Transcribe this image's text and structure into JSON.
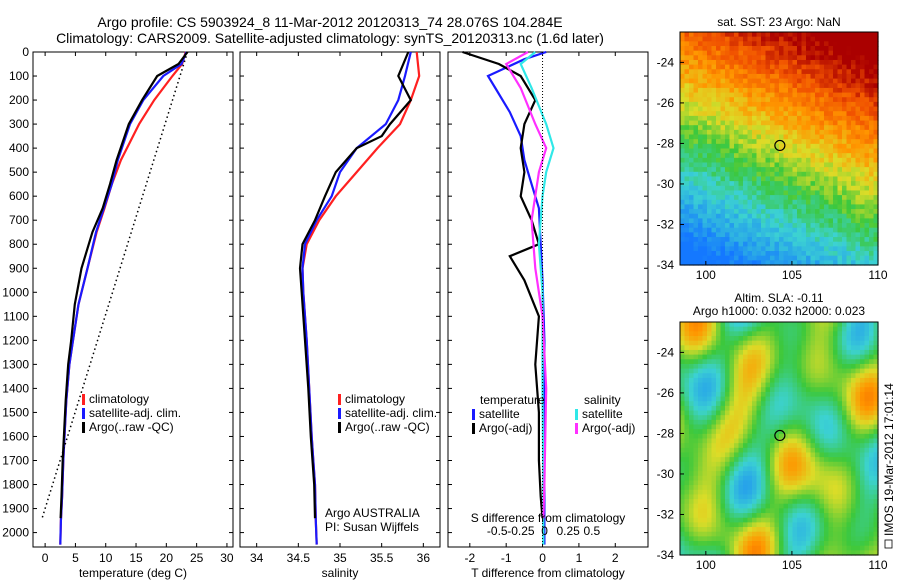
{
  "header": {
    "line1": "Argo profile: CS 5903924_8 11-Mar-2012 20120313_74 28.076S 104.284E",
    "line2": "Climatology: CARS2009. Satellite-adjusted climatology: synTS_20120313.nc (1.6d later)"
  },
  "colors": {
    "climatology": "#ff2020",
    "satellite_adj": "#1a1aff",
    "argo": "#000000",
    "satellite_s": "#30e8e8",
    "argo_s_adj": "#ff30ff"
  },
  "side_text": "IMOS 19-Mar-2012 17:01:14",
  "chart_data": [
    {
      "type": "line",
      "id": "temperature",
      "xlabel": "temperature (deg C)",
      "ylabel": "",
      "xlim": [
        -2,
        31
      ],
      "ylim": [
        2060,
        0
      ],
      "xticks": [
        0,
        5,
        10,
        15,
        20,
        25,
        30
      ],
      "yticks": [
        0,
        100,
        200,
        300,
        400,
        500,
        600,
        700,
        800,
        900,
        1000,
        1100,
        1200,
        1300,
        1400,
        1500,
        1600,
        1700,
        1800,
        1900,
        2000
      ],
      "legend": [
        "climatology",
        "satellite-adj. clim.",
        "Argo(..raw -QC)"
      ],
      "series": [
        {
          "name": "climatology",
          "color": "#ff2020",
          "x": [
            23.2,
            22.6,
            21,
            18,
            15.5,
            12.5,
            11,
            9.8,
            8.5,
            7,
            5.5,
            4.6,
            4,
            3.5,
            3.2,
            3,
            2.8,
            2.6,
            2.5
          ],
          "y": [
            0,
            50,
            100,
            200,
            300,
            450,
            550,
            650,
            750,
            900,
            1050,
            1200,
            1300,
            1450,
            1600,
            1700,
            1850,
            1950,
            2050
          ]
        },
        {
          "name": "satellite-adj. clim.",
          "color": "#1a1aff",
          "x": [
            23.3,
            22.5,
            19.5,
            16.2,
            14,
            12,
            11,
            9.7,
            8.4,
            7,
            5.5,
            4.6,
            4,
            3.5,
            3.2,
            3,
            2.8,
            2.6,
            2.5
          ],
          "y": [
            0,
            50,
            100,
            200,
            300,
            450,
            550,
            650,
            750,
            900,
            1050,
            1200,
            1300,
            1450,
            1600,
            1700,
            1850,
            1950,
            2050
          ]
        },
        {
          "name": "Argo(..raw -QC)",
          "color": "#000000",
          "x": [
            23.5,
            22,
            18.5,
            16,
            13.8,
            11.8,
            10.7,
            9.5,
            7.8,
            6,
            4.9,
            4.3,
            3.8,
            3.4,
            3.1,
            2.9,
            2.7,
            2.55
          ],
          "y": [
            0,
            50,
            100,
            200,
            300,
            450,
            550,
            650,
            750,
            900,
            1050,
            1200,
            1300,
            1450,
            1600,
            1700,
            1850,
            1940
          ]
        },
        {
          "name": "",
          "color": "#000000",
          "dotted": true,
          "x": [
            23.5,
            -0.5
          ],
          "y": [
            0,
            1940
          ]
        }
      ]
    },
    {
      "type": "line",
      "id": "salinity",
      "xlabel": "salinity",
      "ylabel": "",
      "xlim": [
        33.8,
        36.2
      ],
      "ylim": [
        2060,
        0
      ],
      "xticks": [
        34,
        34.5,
        35,
        35.5,
        36
      ],
      "legend": [
        "climatology",
        "satellite-adj. clim.",
        "Argo(..raw -QC)"
      ],
      "annotation": [
        "Argo AUSTRALIA",
        "PI: Susan Wijffels"
      ],
      "series": [
        {
          "name": "climatology",
          "color": "#ff2020",
          "x": [
            35.92,
            35.95,
            35.85,
            35.72,
            35.45,
            35.2,
            34.95,
            34.75,
            34.6,
            34.55,
            34.56,
            34.6,
            34.63,
            34.66,
            34.68,
            34.7,
            34.71,
            34.72
          ],
          "y": [
            0,
            100,
            200,
            300,
            400,
            500,
            600,
            700,
            800,
            900,
            1000,
            1200,
            1400,
            1600,
            1700,
            1800,
            1950,
            2050
          ]
        },
        {
          "name": "satellite-adj. clim.",
          "color": "#1a1aff",
          "x": [
            35.85,
            35.78,
            35.7,
            35.55,
            35.2,
            35.0,
            34.9,
            34.72,
            34.58,
            34.55,
            34.56,
            34.6,
            34.63,
            34.66,
            34.68,
            34.7,
            34.71,
            34.72
          ],
          "y": [
            0,
            100,
            200,
            300,
            400,
            500,
            600,
            700,
            800,
            900,
            1000,
            1200,
            1400,
            1600,
            1700,
            1800,
            1950,
            2050
          ]
        },
        {
          "name": "Argo(..raw -QC)",
          "color": "#000000",
          "x": [
            35.82,
            35.7,
            35.85,
            35.6,
            35.5,
            35.2,
            34.95,
            34.82,
            34.7,
            34.55,
            34.52,
            34.54,
            34.58,
            34.62,
            34.65,
            34.67,
            34.69,
            34.7
          ],
          "y": [
            0,
            100,
            200,
            300,
            350,
            400,
            500,
            600,
            700,
            800,
            900,
            1000,
            1200,
            1400,
            1600,
            1700,
            1800,
            1940
          ]
        }
      ]
    },
    {
      "type": "line",
      "id": "differences",
      "xlabel": "T difference from climatology",
      "x2label": "S difference from climatology",
      "xlim": [
        -2.6,
        2.9
      ],
      "ylim": [
        2060,
        0
      ],
      "xticks": [
        -2,
        -1,
        0,
        1,
        2
      ],
      "x2ticks": [
        "-0.5",
        "-0.25",
        "0",
        "0.25",
        "0.5"
      ],
      "legend_left": [
        "temperature",
        "satellite",
        "Argo(-adj)"
      ],
      "legend_right": [
        "salinity",
        "satellite",
        "Argo(-adj)"
      ],
      "series": [
        {
          "name": "satellite",
          "color": "#1a1aff",
          "x": [
            0.1,
            -0.5,
            -1.5,
            -1.3,
            -0.9,
            -0.6,
            -0.5,
            -0.3,
            -0.1,
            -0.05,
            0,
            0.05,
            0.05,
            0.05,
            0.05
          ],
          "y": [
            0,
            30,
            100,
            150,
            250,
            350,
            450,
            550,
            650,
            800,
            950,
            1200,
            1500,
            1800,
            2050
          ]
        },
        {
          "name": "Argo(-adj)",
          "color": "#000000",
          "x": [
            -2.2,
            -1.2,
            -0.6,
            -0.2,
            -0.5,
            -0.6,
            -0.5,
            -0.6,
            -0.3,
            -0.1,
            -0.9,
            -0.5,
            -0.1,
            -0.2,
            -0.1,
            -0.1,
            -0.05,
            0
          ],
          "y": [
            0,
            50,
            100,
            200,
            300,
            400,
            500,
            600,
            700,
            800,
            850,
            950,
            1100,
            1300,
            1500,
            1700,
            1850,
            1940
          ]
        },
        {
          "name": "satellite",
          "color": "#30e8e8",
          "x": [
            -0.2,
            -0.6,
            -0.3,
            0.1,
            0.3,
            0.1,
            0,
            -0.1,
            0,
            0,
            0.02,
            0.02
          ],
          "y": [
            0,
            50,
            150,
            300,
            400,
            500,
            600,
            800,
            1000,
            1400,
            1800,
            2050
          ]
        },
        {
          "name": "Argo(-adj)",
          "color": "#ff30ff",
          "x": [
            -0.4,
            -1.0,
            -0.6,
            -0.2,
            0.1,
            -0.1,
            -0.3,
            -0.2,
            0,
            0.1,
            0.05,
            0.02
          ],
          "y": [
            0,
            50,
            150,
            300,
            400,
            500,
            700,
            900,
            1100,
            1400,
            1800,
            1940
          ]
        }
      ]
    },
    {
      "type": "heatmap",
      "id": "sst_map",
      "title": "sat. SST: 23 Argo: NaN",
      "xlim": [
        98.5,
        110
      ],
      "ylim": [
        -34,
        -22.5
      ],
      "xticks": [
        100,
        105,
        110
      ],
      "yticks": [
        -24,
        -26,
        -28,
        -30,
        -32,
        -34
      ],
      "marker": [
        104.3,
        -28.1
      ]
    },
    {
      "type": "heatmap",
      "id": "sla_map",
      "title": "Altim. SLA: -0.11",
      "subtitle": "Argo h1000: 0.032 h2000: 0.023",
      "xlim": [
        98.5,
        110
      ],
      "ylim": [
        -34,
        -22.5
      ],
      "xticks": [
        100,
        105,
        110
      ],
      "yticks": [
        -24,
        -26,
        -28,
        -30,
        -32,
        -34
      ],
      "marker": [
        104.3,
        -28.1
      ]
    }
  ]
}
